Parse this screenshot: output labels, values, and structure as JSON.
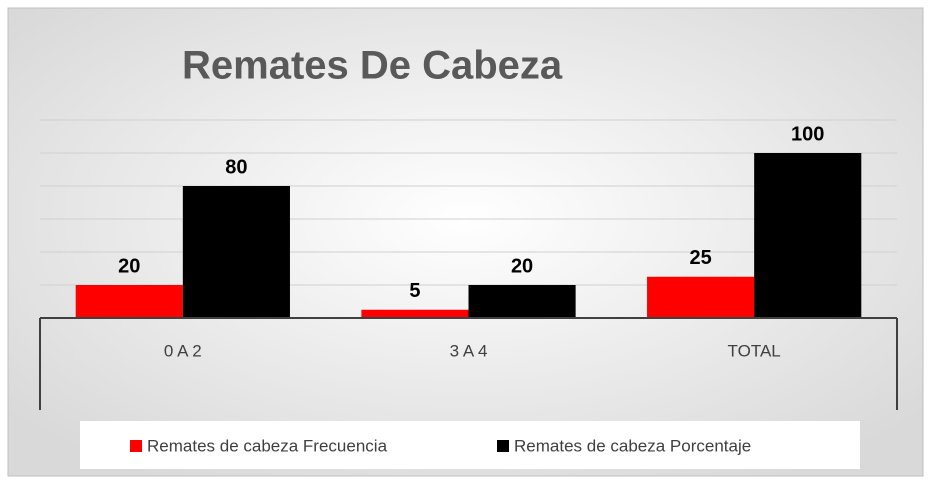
{
  "chart_data": {
    "type": "bar",
    "title": "Remates De Cabeza",
    "categories": [
      "0 A 2",
      "3 A 4",
      "TOTAL"
    ],
    "series": [
      {
        "name": "Remates de cabeza Frecuencia",
        "color": "#ff0000",
        "values": [
          20,
          5,
          25
        ]
      },
      {
        "name": "Remates de cabeza Porcentaje",
        "color": "#000000",
        "values": [
          80,
          20,
          100
        ]
      }
    ],
    "ylim": [
      0,
      120
    ],
    "yticks": [
      0,
      20,
      40,
      60,
      80,
      100,
      120
    ],
    "grid": true,
    "legend": "bottom"
  }
}
